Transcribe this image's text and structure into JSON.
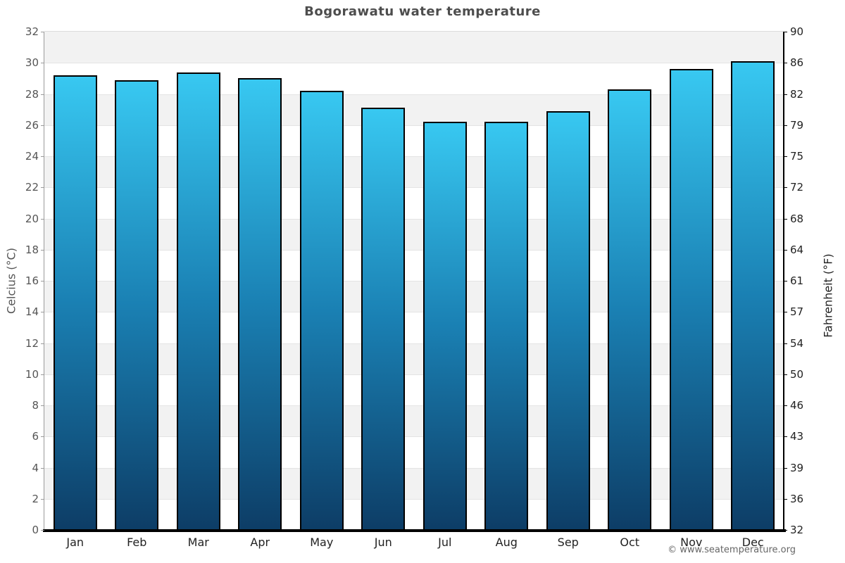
{
  "chart_data": {
    "type": "bar",
    "title": "Bogorawatu water temperature",
    "categories": [
      "Jan",
      "Feb",
      "Mar",
      "Apr",
      "May",
      "Jun",
      "Jul",
      "Aug",
      "Sep",
      "Oct",
      "Nov",
      "Dec"
    ],
    "values": [
      29.2,
      28.9,
      29.4,
      29.0,
      28.2,
      27.1,
      26.2,
      26.2,
      26.9,
      28.3,
      29.6,
      30.1
    ],
    "value_unit": "°C",
    "ylabel_left": "Celcius (°C)",
    "ylabel_right": "Fahrenheit (°F)",
    "ylim": [
      0,
      32
    ],
    "y_ticks_left": [
      0,
      2,
      4,
      6,
      8,
      10,
      12,
      14,
      16,
      18,
      20,
      22,
      24,
      26,
      28,
      30,
      32
    ],
    "y_ticks_right_labels": [
      "32",
      "36",
      "39",
      "43",
      "46",
      "50",
      "54",
      "57",
      "61",
      "64",
      "68",
      "72",
      "75",
      "79",
      "82",
      "86",
      "90"
    ],
    "grid": "alternating horizontal bands every 2°C, shaded band at top (30–32)",
    "legend_position": "none",
    "colors": {
      "bar_gradient_top": "#38c8f1",
      "bar_gradient_mid": "#1a80b3",
      "bar_gradient_bottom": "#0d3d66",
      "bar_border": "#000000",
      "band_shaded": "#f2f2f2",
      "band_plain": "#ffffff",
      "gridline": "#e4e4e4",
      "axis_bottom": "#000000",
      "title_text": "#4d4d4d",
      "tick_text_left": "#555555",
      "tick_text_right": "#222222"
    }
  },
  "footer": {
    "copyright": "© www.seatemperature.org"
  }
}
